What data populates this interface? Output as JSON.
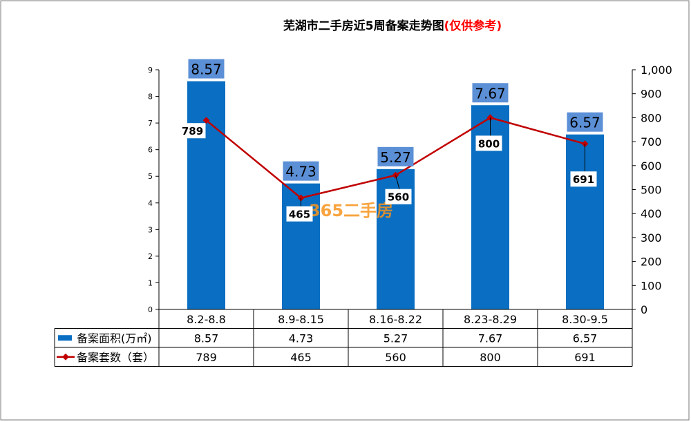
{
  "chart_data": {
    "type": "bar",
    "title_main": "芜湖市二手房近5周备案走势图",
    "title_note": "(仅供参考)",
    "categories": [
      "8.2-8.8",
      "8.9-8.15",
      "8.16-8.22",
      "8.23-8.29",
      "8.30-9.5"
    ],
    "series": [
      {
        "name": "备案面积(万㎡)",
        "kind": "bar",
        "axis": "left",
        "values": [
          8.57,
          4.73,
          5.27,
          7.67,
          6.57
        ],
        "labels": [
          "8.57",
          "4.73",
          "5.27",
          "7.67",
          "6.57"
        ]
      },
      {
        "name": "备案套数（套）",
        "kind": "line",
        "axis": "right",
        "values": [
          789,
          465,
          560,
          800,
          691
        ],
        "labels": [
          "789",
          "465",
          "560",
          "800",
          "691"
        ]
      }
    ],
    "y_left": {
      "min": 0,
      "max": 9,
      "ticks": [
        "0",
        "1",
        "2",
        "3",
        "4",
        "5",
        "6",
        "7",
        "8",
        "9"
      ]
    },
    "y_right": {
      "min": 0,
      "max": 1000,
      "ticks": [
        "0",
        "100",
        "200",
        "300",
        "400",
        "500",
        "600",
        "700",
        "800",
        "900",
        "1,000"
      ]
    },
    "data_table": {
      "rows": [
        {
          "label": "备案面积(万㎡)",
          "values": [
            "8.57",
            "4.73",
            "5.27",
            "7.67",
            "6.57"
          ]
        },
        {
          "label": "备案套数（套）",
          "values": [
            "789",
            "465",
            "560",
            "800",
            "691"
          ]
        }
      ]
    },
    "colors": {
      "bar": "#0a6fc2",
      "bar_label_bg": "#5b8fd6",
      "line": "#c00000",
      "title_note": "#ff0000",
      "grid": "#000000"
    },
    "watermark": "365二手房"
  }
}
